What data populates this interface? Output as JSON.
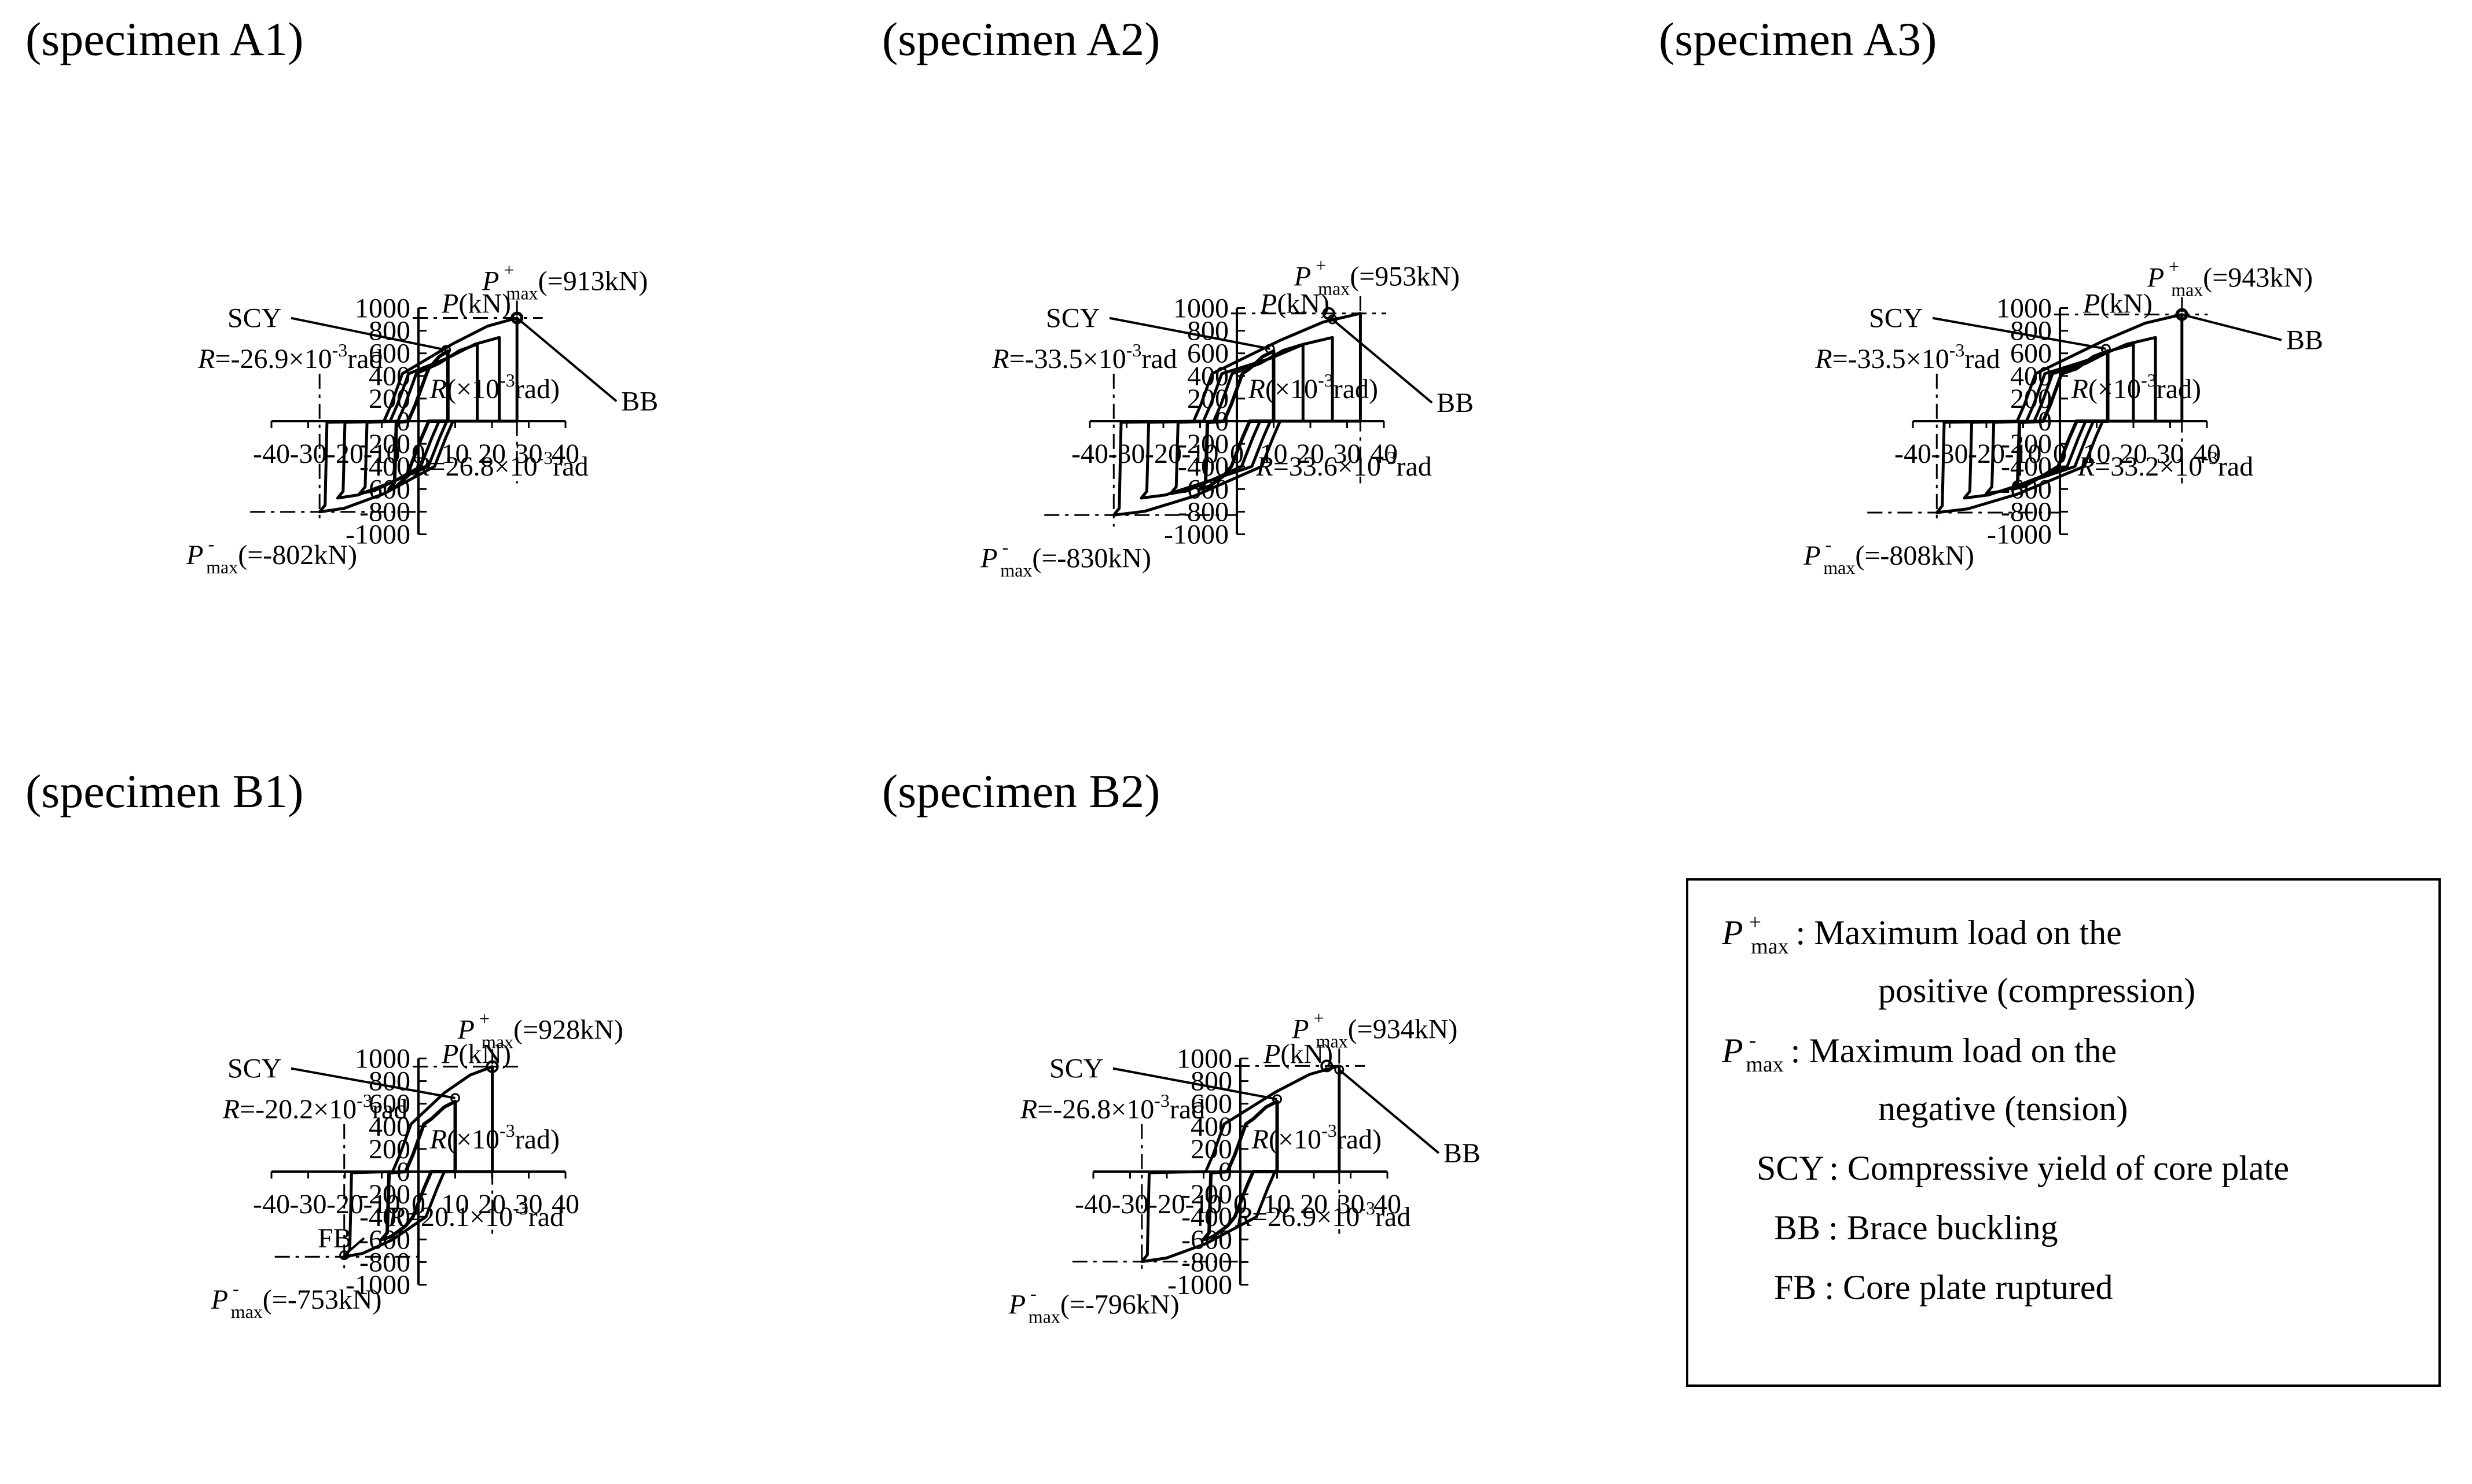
{
  "figure": {
    "legend_box": {
      "entries": [
        {
          "key_main": "P",
          "key_sup": "+",
          "key_sub": "max",
          "text": ": Maximum load on the",
          "text2": "positive (compression)"
        },
        {
          "key_main": "P",
          "key_sup": "-",
          "key_sub": "max",
          "text": ": Maximum load on the",
          "text2": "negative (tension)"
        },
        {
          "key": "SCY",
          "text": ": Compressive yield of core plate"
        },
        {
          "key": "BB",
          "text": ": Brace buckling"
        },
        {
          "key": "FB",
          "text": ": Core plate ruptured"
        }
      ]
    },
    "colors": {
      "line": "#000000",
      "background": "#ffffff"
    }
  },
  "chart_data": [
    {
      "id": "A1",
      "type": "line",
      "title": "(specimen A1)",
      "ylabel": {
        "main": "P",
        "rest": "(kN)"
      },
      "xlabel": {
        "main": "R",
        "rest": "(×10",
        "sup": "-3",
        "tail": "rad)"
      },
      "xlim": [
        -40,
        40
      ],
      "ylim": [
        -1000,
        1000
      ],
      "x_ticks": [
        "-40",
        "-30",
        "-20",
        "-10",
        "0",
        "10",
        "20",
        "30",
        "40"
      ],
      "y_ticks": [
        "1000",
        "800",
        "600",
        "400",
        "200",
        "0",
        "-200",
        "-400",
        "-600",
        "-800",
        "-1000"
      ],
      "grid": false,
      "pmax_pos": {
        "r": 26.8,
        "p": 913,
        "label_main": "P",
        "label_sup": "+",
        "label_sub": "max",
        "label_rest": "(=913kN)"
      },
      "pmax_neg": {
        "r": -26.9,
        "p": -802,
        "label_main": "P",
        "label_sup": "-",
        "label_sub": "max",
        "label_rest": "(=-802kN)"
      },
      "r_pos_label": {
        "main": "R",
        "rest": "=26.8×10",
        "sup": "-3",
        "tail": "rad"
      },
      "r_neg_label": {
        "main": "R",
        "rest": "=-26.9×10",
        "sup": "-3",
        "tail": "rad"
      },
      "annotations": [
        {
          "text": "SCY",
          "point": [
            7.5,
            630
          ]
        },
        {
          "text": "BB",
          "point": [
            26.8,
            913
          ]
        }
      ],
      "cycles": [
        8,
        16,
        22,
        26.8
      ],
      "series": [
        {
          "values": []
        }
      ]
    },
    {
      "id": "A2",
      "type": "line",
      "title": "(specimen A2)",
      "ylabel": {
        "main": "P",
        "rest": "(kN)"
      },
      "xlabel": {
        "main": "R",
        "rest": "(×10",
        "sup": "-3",
        "tail": "rad)"
      },
      "xlim": [
        -40,
        40
      ],
      "ylim": [
        -1000,
        1000
      ],
      "x_ticks": [
        "-40",
        "-30",
        "-20",
        "-10",
        "0",
        "10",
        "20",
        "30",
        "40"
      ],
      "y_ticks": [
        "1000",
        "800",
        "600",
        "400",
        "200",
        "0",
        "-200",
        "-400",
        "-600",
        "-800",
        "-1000"
      ],
      "grid": false,
      "pmax_pos": {
        "r": 25.0,
        "p": 953,
        "label_main": "P",
        "label_sup": "+",
        "label_sub": "max",
        "label_rest": "(=953kN)"
      },
      "pmax_neg": {
        "r": -33.5,
        "p": -830,
        "label_main": "P",
        "label_sup": "-",
        "label_sub": "max",
        "label_rest": "(=-830kN)"
      },
      "r_pos_line": 33.6,
      "r_pos_label": {
        "main": "R",
        "rest": "=33.6×10",
        "sup": "-3",
        "tail": "rad"
      },
      "r_neg_label": {
        "main": "R",
        "rest": "=-33.5×10",
        "sup": "-3",
        "tail": "rad"
      },
      "annotations": [
        {
          "text": "SCY",
          "point": [
            9,
            640
          ]
        },
        {
          "text": "BB",
          "point": [
            26,
            900
          ]
        }
      ],
      "cycles": [
        10,
        18,
        26,
        33.6
      ],
      "series": [
        {
          "values": []
        }
      ]
    },
    {
      "id": "A3",
      "type": "line",
      "title": "(specimen A3)",
      "ylabel": {
        "main": "P",
        "rest": "(kN)"
      },
      "xlabel": {
        "main": "R",
        "rest": "(×10",
        "sup": "-3",
        "tail": "rad)"
      },
      "xlim": [
        -40,
        40
      ],
      "ylim": [
        -1000,
        1000
      ],
      "x_ticks": [
        "-40",
        "-30",
        "-20",
        "-10",
        "0",
        "10",
        "20",
        "30",
        "40"
      ],
      "y_ticks": [
        "1000",
        "800",
        "600",
        "400",
        "200",
        "0",
        "-200",
        "-400",
        "-600",
        "-800",
        "-1000"
      ],
      "grid": false,
      "pmax_pos": {
        "r": 33.2,
        "p": 943,
        "label_main": "P",
        "label_sup": "+",
        "label_sub": "max",
        "label_rest": "(=943kN)"
      },
      "pmax_neg": {
        "r": -33.5,
        "p": -808,
        "label_main": "P",
        "label_sup": "-",
        "label_sub": "max",
        "label_rest": "(=-808kN)"
      },
      "r_pos_label": {
        "main": "R",
        "rest": "=33.2×10",
        "sup": "-3",
        "tail": "rad"
      },
      "r_neg_label": {
        "main": "R",
        "rest": "=-33.5×10",
        "sup": "-3",
        "tail": "rad"
      },
      "annotations": [
        {
          "text": "SCY",
          "point": [
            12.5,
            640
          ]
        },
        {
          "text": "BB",
          "point": [
            33.2,
            943
          ]
        }
      ],
      "cycles": [
        13,
        20,
        26,
        33.2
      ],
      "series": [
        {
          "values": []
        }
      ]
    },
    {
      "id": "B1",
      "type": "line",
      "title": "(specimen B1)",
      "ylabel": {
        "main": "P",
        "rest": "(kN)"
      },
      "xlabel": {
        "main": "R",
        "rest": "(×10",
        "sup": "-3",
        "tail": "rad)"
      },
      "xlim": [
        -40,
        40
      ],
      "ylim": [
        -1000,
        1000
      ],
      "x_ticks": [
        "-40",
        "-30",
        "-20",
        "-10",
        "0",
        "10",
        "20",
        "30",
        "40"
      ],
      "y_ticks": [
        "1000",
        "800",
        "600",
        "400",
        "200",
        "0",
        "-200",
        "-400",
        "-600",
        "-800",
        "-1000"
      ],
      "grid": false,
      "pmax_pos": {
        "r": 20.1,
        "p": 928,
        "label_main": "P",
        "label_sup": "+",
        "label_sub": "max",
        "label_rest": "(=928kN)"
      },
      "pmax_neg": {
        "r": -20.2,
        "p": -753,
        "label_main": "P",
        "label_sup": "-",
        "label_sub": "max",
        "label_rest": "(=-753kN)"
      },
      "r_pos_label": {
        "main": "R",
        "rest": "=20.1×10",
        "sup": "-3",
        "tail": "rad"
      },
      "r_neg_label": {
        "main": "R",
        "rest": "=-20.2×10",
        "sup": "-3",
        "tail": "rad"
      },
      "annotations": [
        {
          "text": "SCY",
          "point": [
            10,
            650
          ]
        },
        {
          "text": "FB",
          "point": [
            -20.2,
            -740
          ]
        }
      ],
      "cycles": [
        10,
        20.1
      ],
      "series": [
        {
          "values": []
        }
      ]
    },
    {
      "id": "B2",
      "type": "line",
      "title": "(specimen B2)",
      "ylabel": {
        "main": "P",
        "rest": "(kN)"
      },
      "xlabel": {
        "main": "R",
        "rest": "(×10",
        "sup": "-3",
        "tail": "rad)"
      },
      "xlim": [
        -40,
        40
      ],
      "ylim": [
        -1000,
        1000
      ],
      "x_ticks": [
        "-40",
        "-30",
        "-20",
        "-10",
        "0",
        "10",
        "20",
        "30",
        "40"
      ],
      "y_ticks": [
        "1000",
        "800",
        "600",
        "400",
        "200",
        "0",
        "-200",
        "-400",
        "-600",
        "-800",
        "-1000"
      ],
      "grid": false,
      "pmax_pos": {
        "r": 23.5,
        "p": 934,
        "label_main": "P",
        "label_sup": "+",
        "label_sub": "max",
        "label_rest": "(=934kN)"
      },
      "pmax_neg": {
        "r": -26.8,
        "p": -796,
        "label_main": "P",
        "label_sup": "-",
        "label_sub": "max",
        "label_rest": "(=-796kN)"
      },
      "r_pos_line": 26.9,
      "r_pos_label": {
        "main": "R",
        "rest": "=26.9×10",
        "sup": "-3",
        "tail": "rad"
      },
      "r_neg_label": {
        "main": "R",
        "rest": "=-26.8×10",
        "sup": "-3",
        "tail": "rad"
      },
      "annotations": [
        {
          "text": "SCY",
          "point": [
            10,
            640
          ]
        },
        {
          "text": "BB",
          "point": [
            26.9,
            900
          ]
        }
      ],
      "cycles": [
        10,
        26.9
      ],
      "series": [
        {
          "values": []
        }
      ]
    }
  ]
}
